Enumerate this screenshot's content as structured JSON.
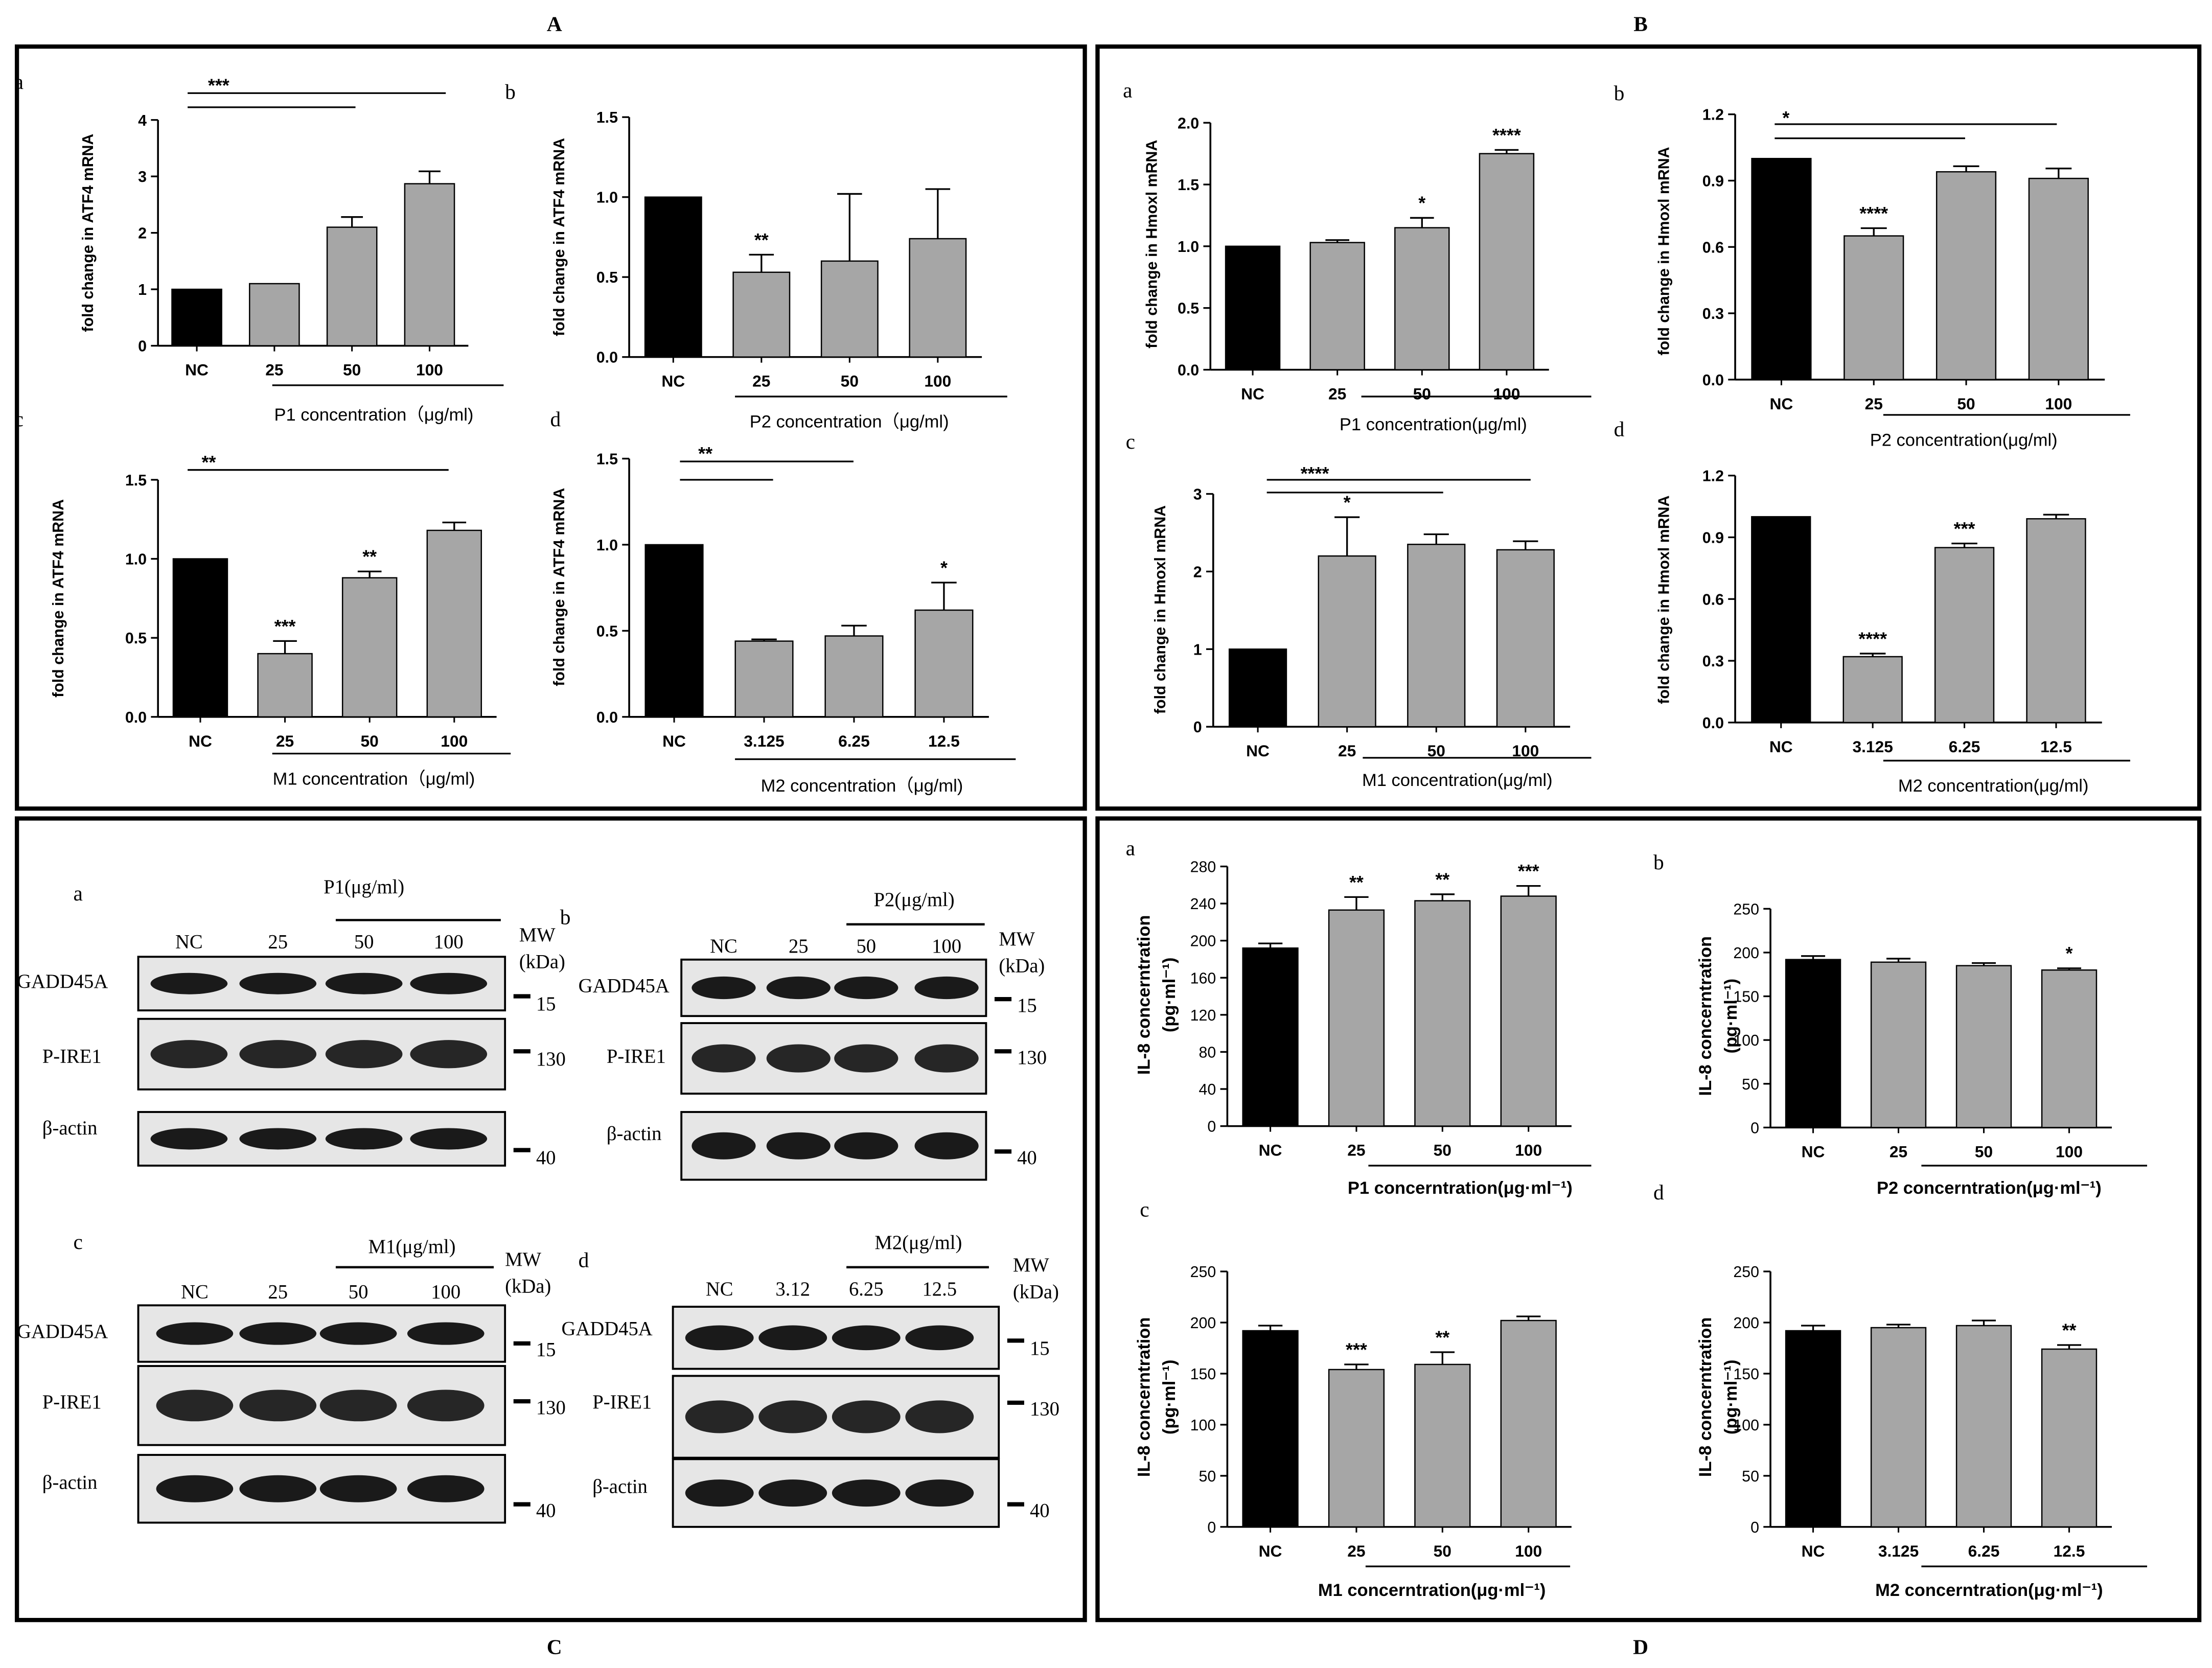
{
  "figure": {
    "panel_labels": [
      "A",
      "B",
      "C",
      "D"
    ],
    "blots": [
      {
        "id": "a",
        "treatment": "P1(μg/ml)",
        "lanes": [
          "NC",
          "25",
          "50",
          "100"
        ],
        "mw_header": [
          "MW",
          "(kDa)"
        ],
        "bands": [
          "GADD45A",
          "P-IRE1",
          "β-actin"
        ],
        "mw": [
          "15",
          "130",
          "40"
        ]
      },
      {
        "id": "b",
        "treatment": "P2(μg/ml)",
        "lanes": [
          "NC",
          "25",
          "50",
          "100"
        ],
        "mw_header": [
          "MW",
          "(kDa)"
        ],
        "bands": [
          "GADD45A",
          "P-IRE1",
          "β-actin"
        ],
        "mw": [
          "15",
          "130",
          "40"
        ]
      },
      {
        "id": "c",
        "treatment": "M1(μg/ml)",
        "lanes": [
          "NC",
          "25",
          "50",
          "100"
        ],
        "mw_header": [
          "MW",
          "(kDa)"
        ],
        "bands": [
          "GADD45A",
          "P-IRE1",
          "β-actin"
        ],
        "mw": [
          "15",
          "130",
          "40"
        ]
      },
      {
        "id": "d",
        "treatment": "M2(μg/ml)",
        "lanes": [
          "NC",
          "3.12",
          "6.25",
          "12.5"
        ],
        "mw_header": [
          "MW",
          "(kDa)"
        ],
        "bands": [
          "GADD45A",
          "P-IRE1",
          "β-actin"
        ],
        "mw": [
          "15",
          "130",
          "40"
        ]
      }
    ]
  },
  "chart_data": [
    {
      "panel": "A",
      "sub": "a",
      "type": "bar",
      "categories": [
        "NC",
        "25",
        "50",
        "100"
      ],
      "values": [
        1.0,
        1.1,
        2.1,
        2.87
      ],
      "errors": [
        0,
        0,
        0.18,
        0.22
      ],
      "colors": [
        "#000000",
        "#a6a6a6",
        "#a6a6a6",
        "#a6a6a6"
      ],
      "ylabel": "fold change in ATF4 mRNA",
      "xlabel": "P1 concentration（μg/ml)",
      "ylim": [
        0,
        4
      ],
      "yticks": [
        "0",
        "1",
        "2",
        "3",
        "4"
      ],
      "annotations": [],
      "brackets": [
        {
          "label": "***",
          "to": [
            "50",
            "100"
          ]
        }
      ]
    },
    {
      "panel": "A",
      "sub": "b",
      "type": "bar",
      "categories": [
        "NC",
        "25",
        "50",
        "100"
      ],
      "values": [
        1.0,
        0.53,
        0.6,
        0.74
      ],
      "errors": [
        0,
        0.11,
        0.42,
        0.31
      ],
      "colors": [
        "#000000",
        "#a6a6a6",
        "#a6a6a6",
        "#a6a6a6"
      ],
      "ylabel": "fold change in ATF4 mRNA",
      "xlabel": "P2 concentration（μg/ml)",
      "ylim": [
        0,
        1.5
      ],
      "yticks": [
        "0.0",
        "0.5",
        "1.0",
        "1.5"
      ],
      "annotations": [
        {
          "index": 1,
          "label": "**"
        }
      ],
      "brackets": []
    },
    {
      "panel": "A",
      "sub": "c",
      "type": "bar",
      "categories": [
        "NC",
        "25",
        "50",
        "100"
      ],
      "values": [
        1.0,
        0.4,
        0.88,
        1.18
      ],
      "errors": [
        0,
        0.08,
        0.04,
        0.05
      ],
      "colors": [
        "#000000",
        "#a6a6a6",
        "#a6a6a6",
        "#a6a6a6"
      ],
      "ylabel": "fold change in ATF4 mRNA",
      "xlabel": "M1 concentration（μg/ml)",
      "ylim": [
        0,
        1.5
      ],
      "yticks": [
        "0.0",
        "0.5",
        "1.0",
        "1.5"
      ],
      "annotations": [
        {
          "index": 1,
          "label": "***"
        },
        {
          "index": 2,
          "label": "**"
        }
      ],
      "brackets": [
        {
          "label": "**",
          "to": [
            "100"
          ]
        }
      ]
    },
    {
      "panel": "A",
      "sub": "d",
      "type": "bar",
      "categories": [
        "NC",
        "3.125",
        "6.25",
        "12.5"
      ],
      "values": [
        1.0,
        0.44,
        0.47,
        0.62
      ],
      "errors": [
        0,
        0.01,
        0.06,
        0.16
      ],
      "colors": [
        "#000000",
        "#a6a6a6",
        "#a6a6a6",
        "#a6a6a6"
      ],
      "ylabel": "fold change in ATF4 mRNA",
      "xlabel": "M2 concentration（μg/ml)",
      "ylim": [
        0,
        1.5
      ],
      "yticks": [
        "0.0",
        "0.5",
        "1.0",
        "1.5"
      ],
      "annotations": [
        {
          "index": 3,
          "label": "*"
        }
      ],
      "brackets": [
        {
          "label": "**",
          "to": [
            "3.125",
            "6.25"
          ]
        }
      ]
    },
    {
      "panel": "B",
      "sub": "a",
      "type": "bar",
      "categories": [
        "NC",
        "25",
        "50",
        "100"
      ],
      "values": [
        1.0,
        1.03,
        1.15,
        1.75
      ],
      "errors": [
        0,
        0.02,
        0.08,
        0.03
      ],
      "colors": [
        "#000000",
        "#a6a6a6",
        "#a6a6a6",
        "#a6a6a6"
      ],
      "ylabel": "fold change in Hmoxl mRNA",
      "xlabel": "P1 concentration(μg/ml)",
      "ylim": [
        0,
        2.0
      ],
      "yticks": [
        "0.0",
        "0.5",
        "1.0",
        "1.5",
        "2.0"
      ],
      "annotations": [
        {
          "index": 2,
          "label": "*"
        },
        {
          "index": 3,
          "label": "****"
        }
      ],
      "brackets": []
    },
    {
      "panel": "B",
      "sub": "b",
      "type": "bar",
      "categories": [
        "NC",
        "25",
        "50",
        "100"
      ],
      "values": [
        1.0,
        0.65,
        0.94,
        0.91
      ],
      "errors": [
        0,
        0.035,
        0.025,
        0.045
      ],
      "colors": [
        "#000000",
        "#a6a6a6",
        "#a6a6a6",
        "#a6a6a6"
      ],
      "ylabel": "fold change in Hmoxl mRNA",
      "xlabel": "P2 concentration(μg/ml)",
      "ylim": [
        0,
        1.2
      ],
      "yticks": [
        "0.0",
        "0.3",
        "0.6",
        "0.9",
        "1.2"
      ],
      "annotations": [
        {
          "index": 1,
          "label": "****"
        }
      ],
      "brackets": [
        {
          "label": "*",
          "to": [
            "50",
            "100"
          ]
        }
      ]
    },
    {
      "panel": "B",
      "sub": "c",
      "type": "bar",
      "categories": [
        "NC",
        "25",
        "50",
        "100"
      ],
      "values": [
        1.0,
        2.2,
        2.35,
        2.28
      ],
      "errors": [
        0,
        0.5,
        0.13,
        0.11
      ],
      "colors": [
        "#000000",
        "#a6a6a6",
        "#a6a6a6",
        "#a6a6a6"
      ],
      "ylabel": "fold change in Hmoxl mRNA",
      "xlabel": "M1 concentration(μg/ml)",
      "ylim": [
        0,
        3
      ],
      "yticks": [
        "0",
        "1",
        "2",
        "3"
      ],
      "annotations": [
        {
          "index": 1,
          "label": "*"
        }
      ],
      "brackets": [
        {
          "label": "****",
          "to": [
            "50",
            "100"
          ]
        }
      ]
    },
    {
      "panel": "B",
      "sub": "d",
      "type": "bar",
      "categories": [
        "NC",
        "3.125",
        "6.25",
        "12.5"
      ],
      "values": [
        1.0,
        0.32,
        0.85,
        0.99
      ],
      "errors": [
        0,
        0.015,
        0.02,
        0.02
      ],
      "colors": [
        "#000000",
        "#a6a6a6",
        "#a6a6a6",
        "#a6a6a6"
      ],
      "ylabel": "fold change in Hmoxl mRNA",
      "xlabel": "M2 concentration(μg/ml)",
      "ylim": [
        0,
        1.2
      ],
      "yticks": [
        "0.0",
        "0.3",
        "0.6",
        "0.9",
        "1.2"
      ],
      "annotations": [
        {
          "index": 1,
          "label": "****"
        },
        {
          "index": 2,
          "label": "***"
        }
      ],
      "brackets": []
    },
    {
      "panel": "D",
      "sub": "a",
      "type": "bar",
      "categories": [
        "NC",
        "25",
        "50",
        "100"
      ],
      "values": [
        192,
        233,
        243,
        248
      ],
      "errors": [
        5,
        14,
        7,
        11
      ],
      "colors": [
        "#000000",
        "#a6a6a6",
        "#a6a6a6",
        "#a6a6a6"
      ],
      "ylabel": "IL-8 concerntration (pg·ml⁻¹)",
      "xlabel": "P1 concerntration(μg·ml⁻¹)",
      "ylim": [
        0,
        280
      ],
      "yticks": [
        "0",
        "40",
        "80",
        "120",
        "160",
        "200",
        "240",
        "280"
      ],
      "annotations": [
        {
          "index": 1,
          "label": "**"
        },
        {
          "index": 2,
          "label": "**"
        },
        {
          "index": 3,
          "label": "***"
        }
      ],
      "brackets": []
    },
    {
      "panel": "D",
      "sub": "b",
      "type": "bar",
      "categories": [
        "NC",
        "25",
        "50",
        "100"
      ],
      "values": [
        192,
        189,
        185,
        180
      ],
      "errors": [
        4,
        4,
        3,
        2
      ],
      "colors": [
        "#000000",
        "#a6a6a6",
        "#a6a6a6",
        "#a6a6a6"
      ],
      "ylabel": "IL-8 concerntration (pg·ml⁻¹)",
      "xlabel": "P2 concerntration(μg·ml⁻¹)",
      "ylim": [
        0,
        250
      ],
      "yticks": [
        "0",
        "50",
        "100",
        "150",
        "200",
        "250"
      ],
      "annotations": [
        {
          "index": 3,
          "label": "*"
        }
      ],
      "brackets": []
    },
    {
      "panel": "D",
      "sub": "c",
      "type": "bar",
      "categories": [
        "NC",
        "25",
        "50",
        "100"
      ],
      "values": [
        192,
        154,
        159,
        202
      ],
      "errors": [
        5,
        5,
        12,
        4
      ],
      "colors": [
        "#000000",
        "#a6a6a6",
        "#a6a6a6",
        "#a6a6a6"
      ],
      "ylabel": "IL-8 concerntration (pg·ml⁻¹)",
      "xlabel": "M1 concerntration(μg·ml⁻¹)",
      "ylim": [
        0,
        250
      ],
      "yticks": [
        "0",
        "50",
        "100",
        "150",
        "200",
        "250"
      ],
      "annotations": [
        {
          "index": 1,
          "label": "***"
        },
        {
          "index": 2,
          "label": "**"
        }
      ],
      "brackets": []
    },
    {
      "panel": "D",
      "sub": "d",
      "type": "bar",
      "categories": [
        "NC",
        "3.125",
        "6.25",
        "12.5"
      ],
      "values": [
        192,
        195,
        197,
        174
      ],
      "errors": [
        5,
        3,
        5,
        4
      ],
      "colors": [
        "#000000",
        "#a6a6a6",
        "#a6a6a6",
        "#a6a6a6"
      ],
      "ylabel": "IL-8 concerntration (pg·ml⁻¹)",
      "xlabel": "M2 concerntration(μg·ml⁻¹)",
      "ylim": [
        0,
        250
      ],
      "yticks": [
        "0",
        "50",
        "100",
        "150",
        "200",
        "250"
      ],
      "annotations": [
        {
          "index": 3,
          "label": "**"
        }
      ],
      "brackets": []
    }
  ]
}
